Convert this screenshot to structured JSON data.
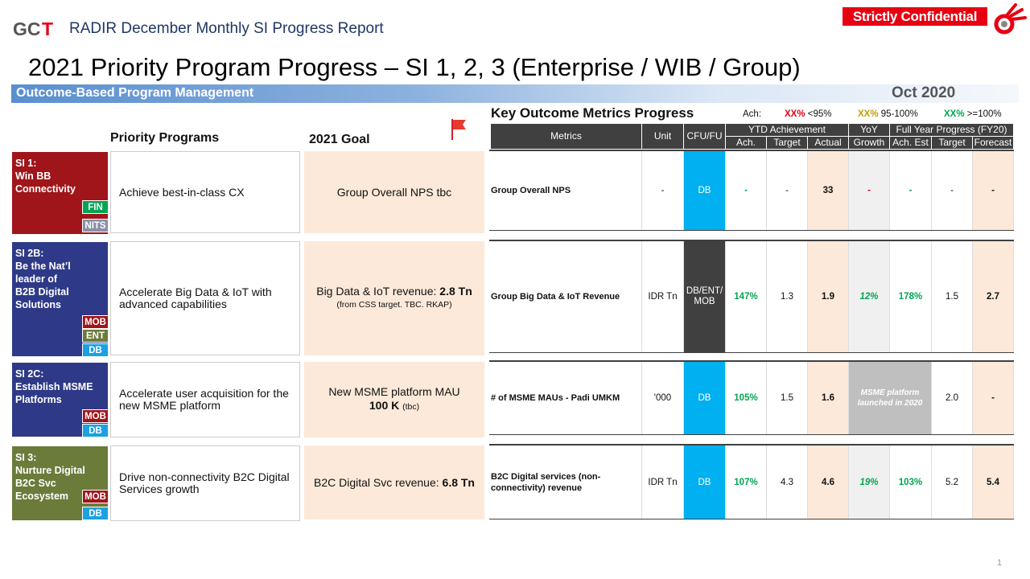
{
  "header": {
    "logo_text": "GCT",
    "report_title": "RADIR December Monthly SI Progress Report",
    "confidential": "Strictly Confidential",
    "main_title": "2021 Priority Program Progress – SI 1, 2, 3 (Enterprise / WIB / Group)",
    "bar_label": "Outcome-Based Program Management",
    "month": "Oct 2020"
  },
  "columns": {
    "priority_programs": "Priority Programs",
    "goal_2021": "2021 Goal",
    "kom_title": "Key Outcome Metrics Progress"
  },
  "legend": {
    "ach_label": "Ach:",
    "red_sample": "XX%",
    "red_text": "<95%",
    "amber_sample": "XX%",
    "amber_text": "95-100%",
    "green_sample": "XX%",
    "green_text": ">=100%"
  },
  "table_header": {
    "metrics": "Metrics",
    "unit": "Unit",
    "cfu": "CFU/FU",
    "ytd": "YTD Achievement",
    "ytd_ach": "Ach.",
    "ytd_target": "Target",
    "ytd_actual": "Actual",
    "yoy_top": "YoY",
    "yoy_bottom": "Growth",
    "fy": "Full Year Progress (FY20)",
    "fy_ach": "Ach. Est",
    "fy_target": "Target",
    "fy_forecast": "Forecast"
  },
  "rows": [
    {
      "si_title": "SI 1:\nWin BB\nConnectivity",
      "tags": [
        "FIN",
        "NITS"
      ],
      "program": "Achieve best-in-class CX",
      "goal_main": "Group Overall NPS tbc",
      "goal_bold": "",
      "goal_sub": "",
      "metric": "Group Overall NPS",
      "unit": "-",
      "cfu": "DB",
      "ytd_ach": "-",
      "ytd_target": "-",
      "ytd_actual": "33",
      "yoy": "-",
      "fy_ach": "-",
      "fy_target": "-",
      "fy_forecast": "-"
    },
    {
      "si_title": "SI 2B:\nBe the Nat’l\nleader of\nB2B Digital\nSolutions",
      "tags": [
        "MOB",
        "ENT",
        "DB"
      ],
      "program": "Accelerate Big Data & IoT with advanced capabilities",
      "goal_main": "Big Data & IoT revenue: ",
      "goal_bold": "2.8 Tn",
      "goal_sub": "(from CSS target. TBC. RKAP)",
      "metric": "Group Big Data & IoT Revenue",
      "unit": "IDR Tn",
      "cfu": "DB/ENT/\nMOB",
      "ytd_ach": "147%",
      "ytd_target": "1.3",
      "ytd_actual": "1.9",
      "yoy": "12%",
      "fy_ach": "178%",
      "fy_target": "1.5",
      "fy_forecast": "2.7"
    },
    {
      "si_title": "SI 2C:\nEstablish MSME\nPlatforms",
      "tags": [
        "MOB",
        "DB"
      ],
      "program": "Accelerate user acquisition for the new MSME platform",
      "goal_main": "New MSME platform MAU",
      "goal_bold": "100 K",
      "goal_sub": "(tbc)",
      "metric": "# of MSME MAUs - Padi UMKM",
      "unit": "'000",
      "cfu": "DB",
      "ytd_ach": "105%",
      "ytd_target": "1.5",
      "ytd_actual": "1.6",
      "yoy": "MSME platform launched in 2020",
      "fy_ach": "",
      "fy_target": "2.0",
      "fy_forecast": "-"
    },
    {
      "si_title": "SI 3:\nNurture Digital\nB2C Svc\nEcosystem",
      "tags": [
        "MOB",
        "DB"
      ],
      "program": "Drive non-connectivity B2C Digital Services growth",
      "goal_main": "B2C Digital Svc revenue: ",
      "goal_bold": "6.8 Tn",
      "goal_sub": "",
      "metric": "B2C Digital services (non-connectivity) revenue",
      "unit": "IDR Tn",
      "cfu": "DB",
      "ytd_ach": "107%",
      "ytd_target": "4.3",
      "ytd_actual": "4.6",
      "yoy": "19%",
      "fy_ach": "103%",
      "fy_target": "5.2",
      "fy_forecast": "5.4"
    }
  ],
  "colors": {
    "si1": "#a0151a",
    "si2b": "#2e3a87",
    "si2c": "#2e3a87",
    "si3": "#6b7b3a",
    "FIN": "#00a651",
    "NITS": "#8a8fa8",
    "MOB": "#a0151a",
    "ENT": "#6b7b3a",
    "DB": "#1ba1e2"
  },
  "page_number": "1"
}
